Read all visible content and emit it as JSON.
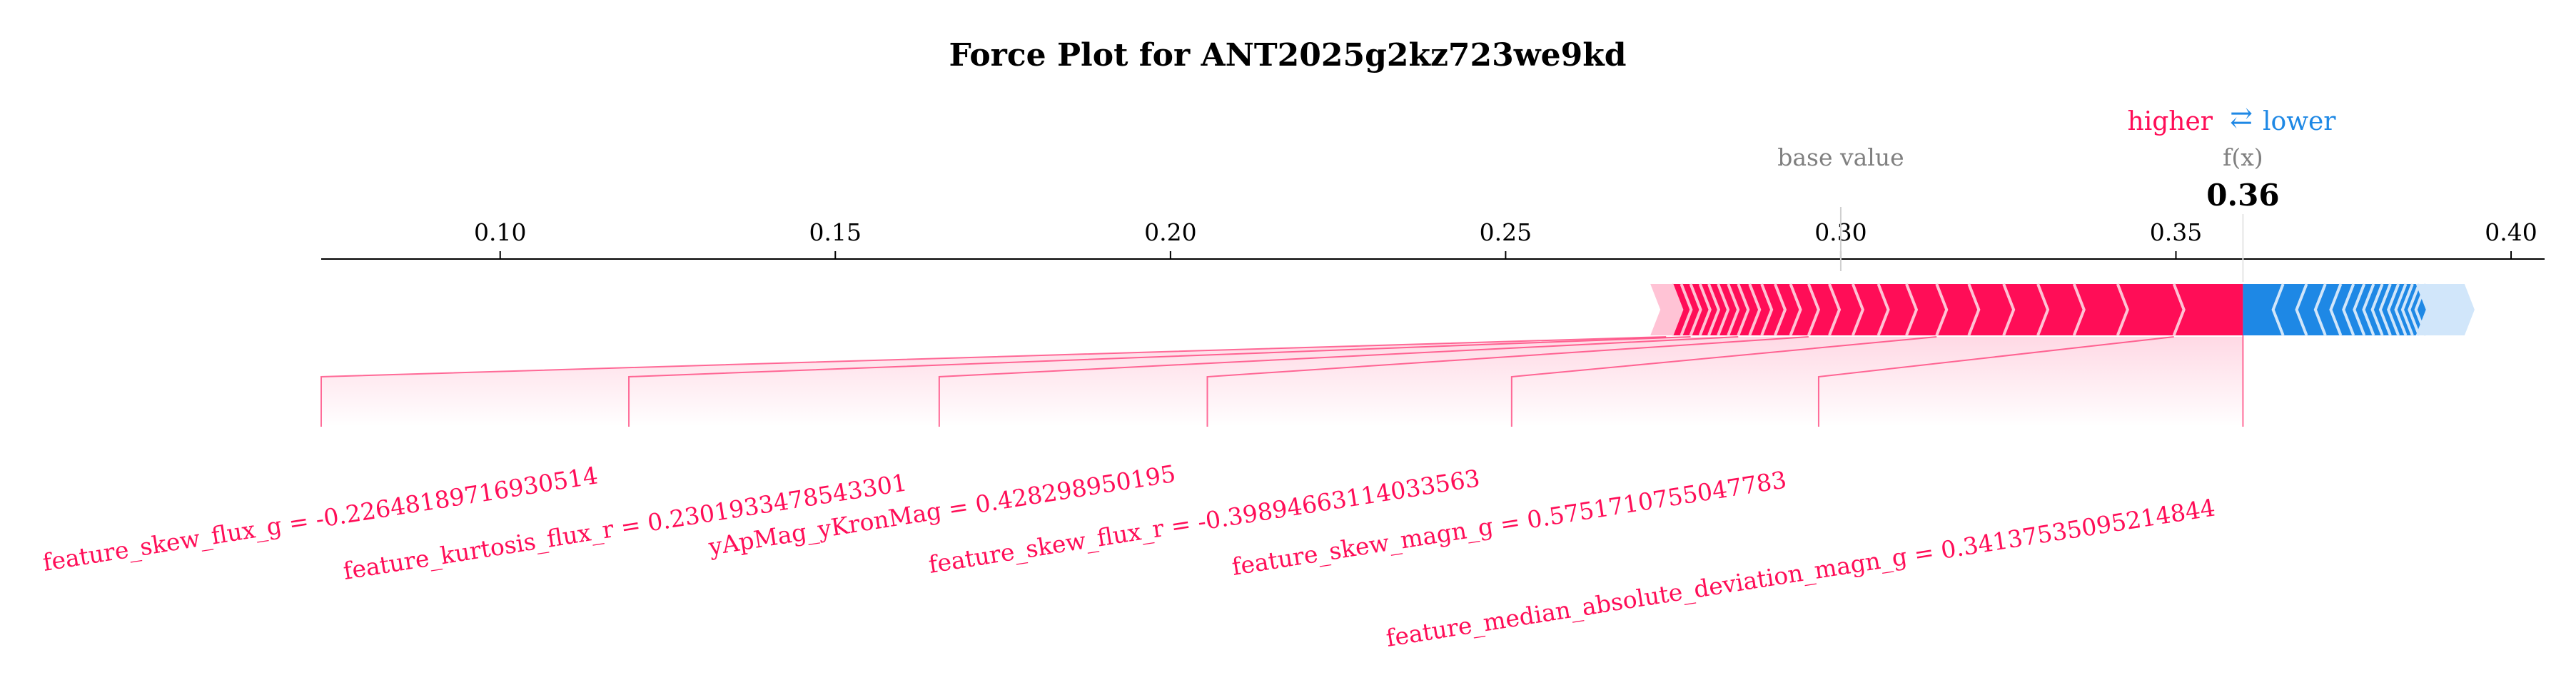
{
  "chart_data": {
    "type": "force",
    "title": "Force Plot for ANT2025g2kz723we9kd",
    "legend": {
      "higher": "higher",
      "arrow": "⇄",
      "lower": "lower",
      "placement": "top-right"
    },
    "base_value": 0.3,
    "base_value_label": "base value",
    "output_value": 0.36,
    "output_label": "f(x)",
    "output_value_label": "0.36",
    "x_ticks": [
      0.1,
      0.15,
      0.2,
      0.25,
      0.3,
      0.35,
      0.4
    ],
    "x_tick_labels": [
      "0.10",
      "0.15",
      "0.20",
      "0.25",
      "0.30",
      "0.35",
      "0.40"
    ],
    "xlim": [
      0.0733,
      0.405
    ],
    "positive_segments": [
      0.2733,
      0.2748,
      0.2762,
      0.2776,
      0.279,
      0.2803,
      0.2817,
      0.2832,
      0.2847,
      0.2864,
      0.2882,
      0.2902,
      0.2925,
      0.2952,
      0.2983,
      0.3018,
      0.3056,
      0.3098,
      0.3143,
      0.3191,
      0.3243,
      0.3294,
      0.3348,
      0.3413,
      0.3497,
      0.36
    ],
    "negative_segments": [
      0.36,
      0.3645,
      0.368,
      0.3708,
      0.3731,
      0.375,
      0.3766,
      0.378,
      0.3793,
      0.3805,
      0.3817,
      0.3828,
      0.3838,
      0.3848,
      0.3858,
      0.3888
    ],
    "features": [
      {
        "label": "feature_skew_flux_g = -0.22648189716930514",
        "axis_x": 0.0733
      },
      {
        "label": "feature_kurtosis_flux_r = 0.2301933478543301",
        "axis_x": 0.1192
      },
      {
        "label": "yApMag_yKronMag = 0.428298950195",
        "axis_x": 0.1655
      },
      {
        "label": "feature_skew_flux_r = -0.39894663114033563",
        "axis_x": 0.2055
      },
      {
        "label": "feature_skew_magn_g = 0.5751710755047783",
        "axis_x": 0.2509
      },
      {
        "label": "feature_median_absolute_deviation_magn_g = 0.34137535095214844",
        "axis_x": 0.2967
      }
    ],
    "colors": {
      "positive": "#ff0d57",
      "positive_light": "#ffc3d5",
      "negative": "#1e88e5",
      "negative_light": "#d1e6fa",
      "axis": "#000000",
      "base_label": "#808080"
    }
  }
}
